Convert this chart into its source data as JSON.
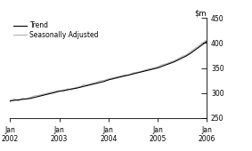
{
  "title": "",
  "xlim_start": 0,
  "xlim_end": 48,
  "ylim": [
    250,
    450
  ],
  "yticks": [
    250,
    300,
    350,
    400,
    450
  ],
  "xtick_positions": [
    0,
    12,
    24,
    36,
    48
  ],
  "xtick_labels": [
    "Jan\n2002",
    "Jan\n2003",
    "Jan\n2004",
    "Jan\n2005",
    "Jan\n2006"
  ],
  "trend_color": "#000000",
  "seasonal_color": "#b0b0b0",
  "legend_trend": "Trend",
  "legend_seasonal": "Seasonally Adjusted",
  "background_color": "#ffffff",
  "trend_values": [
    284,
    285,
    286,
    287,
    288,
    289,
    291,
    293,
    295,
    297,
    299,
    301,
    303,
    305,
    306,
    308,
    309,
    311,
    313,
    315,
    317,
    319,
    321,
    323,
    326,
    328,
    330,
    332,
    334,
    336,
    338,
    340,
    342,
    344,
    346,
    348,
    350,
    353,
    356,
    359,
    362,
    366,
    370,
    374,
    379,
    385,
    391,
    397,
    403
  ],
  "seasonal_values": [
    282,
    288,
    284,
    289,
    287,
    291,
    294,
    295,
    297,
    299,
    301,
    303,
    305,
    302,
    308,
    306,
    311,
    312,
    316,
    316,
    319,
    321,
    324,
    325,
    328,
    330,
    332,
    334,
    336,
    335,
    340,
    341,
    343,
    346,
    348,
    350,
    352,
    356,
    358,
    361,
    364,
    368,
    373,
    376,
    382,
    388,
    394,
    400,
    406
  ]
}
